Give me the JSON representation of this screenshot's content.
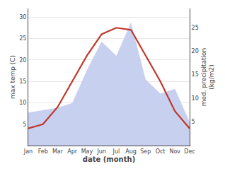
{
  "chart_data": {
    "type": "line",
    "xlabel": "date (month)",
    "ylabel": "max temp (C)",
    "y2label": "med. precipitation\n(kg/m2)",
    "categories": [
      "Jan",
      "Feb",
      "Mar",
      "Apr",
      "May",
      "Jun",
      "Jul",
      "Aug",
      "Sep",
      "Oct",
      "Nov",
      "Dec"
    ],
    "series": [
      {
        "type": "area",
        "axis": "y2",
        "color": "#c8d0f0",
        "values": [
          7,
          7.5,
          8,
          9,
          16,
          22,
          19,
          26,
          14,
          11,
          12,
          5
        ]
      },
      {
        "type": "line",
        "color": "#c0392b",
        "values": [
          4,
          5,
          9,
          15,
          21,
          26,
          27.5,
          27,
          21,
          15,
          8,
          4
        ]
      }
    ],
    "ylim": [
      0,
      32
    ],
    "yticks": [
      5,
      10,
      15,
      20,
      25,
      30
    ],
    "y2lim": [
      0,
      29
    ],
    "y2ticks": [
      5,
      10,
      15,
      20,
      25
    ],
    "grid": true
  }
}
